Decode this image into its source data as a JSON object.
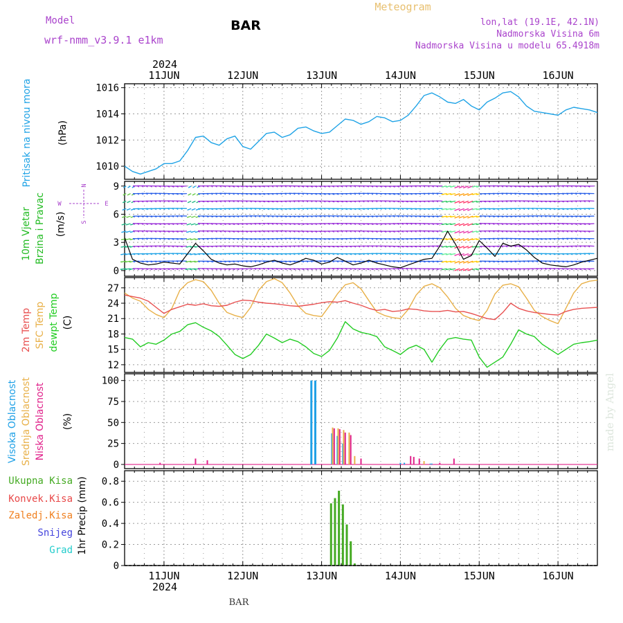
{
  "header": {
    "model_label": "Model",
    "model_name": "wrf-nmm_v3.9.1 e1km",
    "station": "BAR",
    "product": "Meteogram",
    "location": "lon,lat (19.1E, 42.1N)",
    "elevation": "Nadmorska Visina 6m",
    "model_elevation": "Nadmorska Visina u modelu 65.4918m",
    "year": "2024",
    "footer_station": "BAR",
    "credit": "made by Angel"
  },
  "colors": {
    "pressure": "#1fa3e6",
    "temp2m": "#e85050",
    "sfc_temp": "#e8b048",
    "dewpt": "#22cc22",
    "high_cloud": "#1ea0e6",
    "mid_cloud": "#e8b048",
    "low_cloud": "#e0208a",
    "total_rain": "#44aa22",
    "conv_rain": "#e84848",
    "frz_rain": "#f08020",
    "snow": "#4444dd",
    "hail": "#22cccc",
    "wind_label": "#22bb22",
    "dir_label": "#aa44cc",
    "grid": "#999999",
    "title_orange": "#e8c070",
    "purple": "#aa44cc"
  },
  "chart_data": [
    {
      "type": "line",
      "panel": "pressure",
      "ylabel": "Pritisak na nivou mora",
      "unit": "(hPa)",
      "ylim": [
        1009,
        1016.3
      ],
      "yticks": [
        1010,
        1012,
        1014,
        1016
      ],
      "x_day_range": [
        10.5,
        16.5
      ],
      "series": [
        {
          "x": [
            10.5,
            10.6,
            10.7,
            10.8,
            10.9,
            11.0,
            11.1,
            11.2,
            11.3,
            11.4,
            11.5,
            11.6,
            11.7,
            11.8,
            11.9,
            12.0,
            12.1,
            12.2,
            12.3,
            12.4,
            12.5,
            12.6,
            12.7,
            12.8,
            12.9,
            13.0,
            13.1,
            13.2,
            13.3,
            13.4,
            13.5,
            13.6,
            13.7,
            13.8,
            13.9,
            14.0,
            14.1,
            14.2,
            14.3,
            14.4,
            14.5,
            14.6,
            14.7,
            14.8,
            14.9,
            15.0,
            15.1,
            15.2,
            15.3,
            15.4,
            15.5,
            15.6,
            15.7,
            15.8,
            15.9,
            16.0,
            16.1,
            16.2,
            16.3,
            16.4,
            16.5
          ],
          "y": [
            1010.0,
            1009.6,
            1009.4,
            1009.6,
            1009.8,
            1010.2,
            1010.2,
            1010.4,
            1011.2,
            1012.2,
            1012.3,
            1011.8,
            1011.6,
            1012.1,
            1012.3,
            1011.5,
            1011.3,
            1011.9,
            1012.5,
            1012.6,
            1012.2,
            1012.4,
            1012.9,
            1013.0,
            1012.7,
            1012.5,
            1012.6,
            1013.1,
            1013.6,
            1013.5,
            1013.2,
            1013.4,
            1013.8,
            1013.7,
            1013.4,
            1013.5,
            1013.9,
            1014.6,
            1015.4,
            1015.6,
            1015.3,
            1014.9,
            1014.8,
            1015.1,
            1014.6,
            1014.3,
            1014.9,
            1015.2,
            1015.6,
            1015.7,
            1015.3,
            1014.6,
            1014.2,
            1014.1,
            1014.0,
            1013.9,
            1014.3,
            1014.5,
            1014.4,
            1014.3,
            1014.1
          ]
        }
      ]
    },
    {
      "type": "line",
      "panel": "wind",
      "ylabel": "10m Vjetar Brzina i Pravac",
      "unit": "(m/s)",
      "compass": {
        "n": "N",
        "s": "S",
        "e": "E",
        "w": "W"
      },
      "ylim": [
        -0.6,
        9.5
      ],
      "yticks": [
        0,
        3,
        6,
        9
      ],
      "series": [
        {
          "name": "wind_speed",
          "x": [
            10.5,
            10.6,
            10.7,
            10.8,
            10.9,
            11.0,
            11.1,
            11.2,
            11.3,
            11.4,
            11.5,
            11.6,
            11.7,
            11.8,
            11.9,
            12.0,
            12.1,
            12.2,
            12.3,
            12.4,
            12.5,
            12.6,
            12.7,
            12.8,
            12.9,
            13.0,
            13.1,
            13.2,
            13.3,
            13.4,
            13.5,
            13.6,
            13.7,
            13.8,
            13.9,
            14.0,
            14.1,
            14.2,
            14.3,
            14.4,
            14.5,
            14.6,
            14.7,
            14.8,
            14.9,
            15.0,
            15.1,
            15.2,
            15.3,
            15.4,
            15.5,
            15.6,
            15.7,
            15.8,
            15.9,
            16.0,
            16.1,
            16.2,
            16.3,
            16.4,
            16.5
          ],
          "y": [
            3.5,
            1.2,
            0.8,
            0.6,
            0.7,
            0.9,
            0.8,
            0.7,
            1.8,
            2.9,
            2.1,
            1.2,
            0.8,
            0.6,
            0.7,
            0.5,
            0.4,
            0.6,
            0.9,
            1.1,
            0.8,
            0.6,
            0.9,
            1.3,
            1.1,
            0.7,
            0.9,
            1.4,
            1.0,
            0.6,
            0.8,
            1.1,
            0.8,
            0.6,
            0.4,
            0.3,
            0.6,
            0.9,
            1.2,
            1.3,
            2.6,
            4.2,
            2.8,
            1.2,
            1.6,
            3.2,
            2.4,
            1.5,
            2.9,
            2.6,
            2.8,
            2.2,
            1.4,
            0.8,
            0.6,
            0.5,
            0.4,
            0.6,
            0.9,
            1.1,
            1.3
          ]
        }
      ]
    },
    {
      "type": "line",
      "panel": "temperature",
      "ylabel": [
        "2m Temp",
        "SFC Temp",
        "dewpt Temp"
      ],
      "unit": "(C)",
      "ylim": [
        10.5,
        29
      ],
      "yticks": [
        12,
        15,
        18,
        21,
        24,
        27
      ],
      "series": [
        {
          "name": "2m Temp",
          "x": [
            10.5,
            10.6,
            10.7,
            10.8,
            10.9,
            11.0,
            11.1,
            11.2,
            11.3,
            11.4,
            11.5,
            11.6,
            11.7,
            11.8,
            11.9,
            12.0,
            12.1,
            12.2,
            12.3,
            12.4,
            12.5,
            12.6,
            12.7,
            12.8,
            12.9,
            13.0,
            13.1,
            13.2,
            13.3,
            13.4,
            13.5,
            13.6,
            13.7,
            13.8,
            13.9,
            14.0,
            14.1,
            14.2,
            14.3,
            14.4,
            14.5,
            14.6,
            14.7,
            14.8,
            14.9,
            15.0,
            15.1,
            15.2,
            15.3,
            15.4,
            15.5,
            15.6,
            15.7,
            15.8,
            15.9,
            16.0,
            16.1,
            16.2,
            16.3,
            16.4,
            16.5
          ],
          "y": [
            25.6,
            25.3,
            25.0,
            24.4,
            23.2,
            22.0,
            22.8,
            23.3,
            23.8,
            23.6,
            23.9,
            23.5,
            23.4,
            23.6,
            24.2,
            24.6,
            24.5,
            24.2,
            24.0,
            23.9,
            23.7,
            23.5,
            23.4,
            23.6,
            23.8,
            24.1,
            24.3,
            24.2,
            24.5,
            24.0,
            23.6,
            23.0,
            22.6,
            22.8,
            22.4,
            22.5,
            22.9,
            22.8,
            22.5,
            22.4,
            22.4,
            22.6,
            22.3,
            22.4,
            22.0,
            21.5,
            21.0,
            20.8,
            22.2,
            24.0,
            23.0,
            22.5,
            22.2,
            22.0,
            21.8,
            21.7,
            22.4,
            22.8,
            23.0,
            23.1,
            23.2
          ]
        },
        {
          "name": "SFC Temp",
          "x": [
            10.5,
            10.6,
            10.7,
            10.8,
            10.9,
            11.0,
            11.1,
            11.2,
            11.3,
            11.4,
            11.5,
            11.6,
            11.7,
            11.8,
            11.9,
            12.0,
            12.1,
            12.2,
            12.3,
            12.4,
            12.5,
            12.6,
            12.7,
            12.8,
            12.9,
            13.0,
            13.1,
            13.2,
            13.3,
            13.4,
            13.5,
            13.6,
            13.7,
            13.8,
            13.9,
            14.0,
            14.1,
            14.2,
            14.3,
            14.4,
            14.5,
            14.6,
            14.7,
            14.8,
            14.9,
            15.0,
            15.1,
            15.2,
            15.3,
            15.4,
            15.5,
            15.6,
            15.7,
            15.8,
            15.9,
            16.0,
            16.1,
            16.2,
            16.3,
            16.4,
            16.5
          ],
          "y": [
            26.0,
            25.0,
            24.4,
            22.8,
            21.8,
            21.2,
            23.0,
            26.5,
            28.0,
            28.6,
            28.2,
            26.5,
            24.0,
            22.2,
            21.6,
            21.2,
            23.2,
            26.5,
            28.2,
            28.8,
            28.0,
            26.0,
            23.5,
            22.0,
            21.6,
            21.4,
            23.5,
            25.8,
            27.6,
            28.0,
            26.8,
            24.5,
            22.3,
            21.6,
            21.2,
            21.0,
            22.8,
            25.6,
            27.3,
            27.8,
            27.0,
            25.2,
            23.0,
            21.6,
            21.0,
            20.6,
            22.6,
            25.8,
            27.5,
            27.8,
            27.2,
            25.0,
            22.6,
            21.4,
            20.6,
            20.0,
            23.0,
            26.0,
            27.8,
            28.3,
            28.5
          ]
        },
        {
          "name": "dewpt Temp",
          "x": [
            10.5,
            10.6,
            10.7,
            10.8,
            10.9,
            11.0,
            11.1,
            11.2,
            11.3,
            11.4,
            11.5,
            11.6,
            11.7,
            11.8,
            11.9,
            12.0,
            12.1,
            12.2,
            12.3,
            12.4,
            12.5,
            12.6,
            12.7,
            12.8,
            12.9,
            13.0,
            13.1,
            13.2,
            13.3,
            13.4,
            13.5,
            13.6,
            13.7,
            13.8,
            13.9,
            14.0,
            14.1,
            14.2,
            14.3,
            14.4,
            14.5,
            14.6,
            14.7,
            14.8,
            14.9,
            15.0,
            15.1,
            15.2,
            15.3,
            15.4,
            15.5,
            15.6,
            15.7,
            15.8,
            15.9,
            16.0,
            16.1,
            16.2,
            16.3,
            16.4,
            16.5
          ],
          "y": [
            17.3,
            17.0,
            15.5,
            16.3,
            16.0,
            16.8,
            18.0,
            18.5,
            19.8,
            20.2,
            19.3,
            18.6,
            17.5,
            15.8,
            14.0,
            13.2,
            14.0,
            15.8,
            18.0,
            17.2,
            16.3,
            17.0,
            16.5,
            15.5,
            14.2,
            13.6,
            14.8,
            17.2,
            20.4,
            19.0,
            18.3,
            18.0,
            17.5,
            15.5,
            14.8,
            14.0,
            15.2,
            15.8,
            15.0,
            12.5,
            15.0,
            17.0,
            17.3,
            17.0,
            16.8,
            13.5,
            11.5,
            12.5,
            13.5,
            16.0,
            18.8,
            18.0,
            17.5,
            16.0,
            15.0,
            14.0,
            15.0,
            16.0,
            16.3,
            16.5,
            16.8
          ]
        }
      ]
    },
    {
      "type": "bar",
      "panel": "cloud",
      "ylabel": [
        "Visoka Oblacnost",
        "Srednja Oblacnost",
        "Niska Oblacnost"
      ],
      "unit": "(%)",
      "ylim": [
        -5,
        108
      ],
      "yticks": [
        0,
        25,
        50,
        75,
        100
      ],
      "series": [
        {
          "name": "Visoka Oblacnost",
          "x": [
            12.87,
            12.92,
            13.13,
            13.2,
            13.27,
            14.0,
            14.05,
            14.38,
            14.4
          ],
          "y": [
            100,
            100,
            37,
            34,
            25,
            2,
            2,
            1,
            1
          ]
        },
        {
          "name": "Srednja Oblacnost",
          "x": [
            13.14,
            13.21,
            13.28,
            13.35,
            13.42,
            14.3
          ],
          "y": [
            44,
            43,
            41,
            38,
            10,
            4
          ]
        },
        {
          "name": "Niska Oblacnost",
          "x": [
            10.95,
            11.4,
            11.55,
            13.16,
            13.23,
            13.3,
            13.37,
            13.5,
            14.13,
            14.17,
            14.24,
            14.5,
            14.68
          ],
          "y": [
            2,
            7,
            5,
            43,
            42,
            38,
            35,
            7,
            10,
            9,
            7,
            2,
            7
          ]
        }
      ]
    },
    {
      "type": "bar",
      "panel": "precip",
      "ylabel": "1hr Precip",
      "unit": "(mm)",
      "legend": [
        "Ukupna Kisa",
        "Konvek.Kisa",
        "Zaledj.Kisa",
        "Snijeg",
        "Grad"
      ],
      "ylim": [
        0,
        0.9
      ],
      "yticks": [
        "0",
        "0.2",
        "0.4",
        "0.6",
        "0.8"
      ],
      "series": [
        {
          "name": "Ukupna Kisa",
          "x": [
            13.12,
            13.17,
            13.22,
            13.27,
            13.32,
            13.37,
            13.42
          ],
          "y": [
            0.59,
            0.64,
            0.71,
            0.58,
            0.39,
            0.23,
            0.02
          ]
        }
      ]
    },
    {
      "type": "axis",
      "xticks": [
        "11JUN",
        "12JUN",
        "13JUN",
        "14JUN",
        "15JUN",
        "16JUN"
      ],
      "xtick_days": [
        11,
        12,
        13,
        14,
        15,
        16
      ]
    }
  ]
}
